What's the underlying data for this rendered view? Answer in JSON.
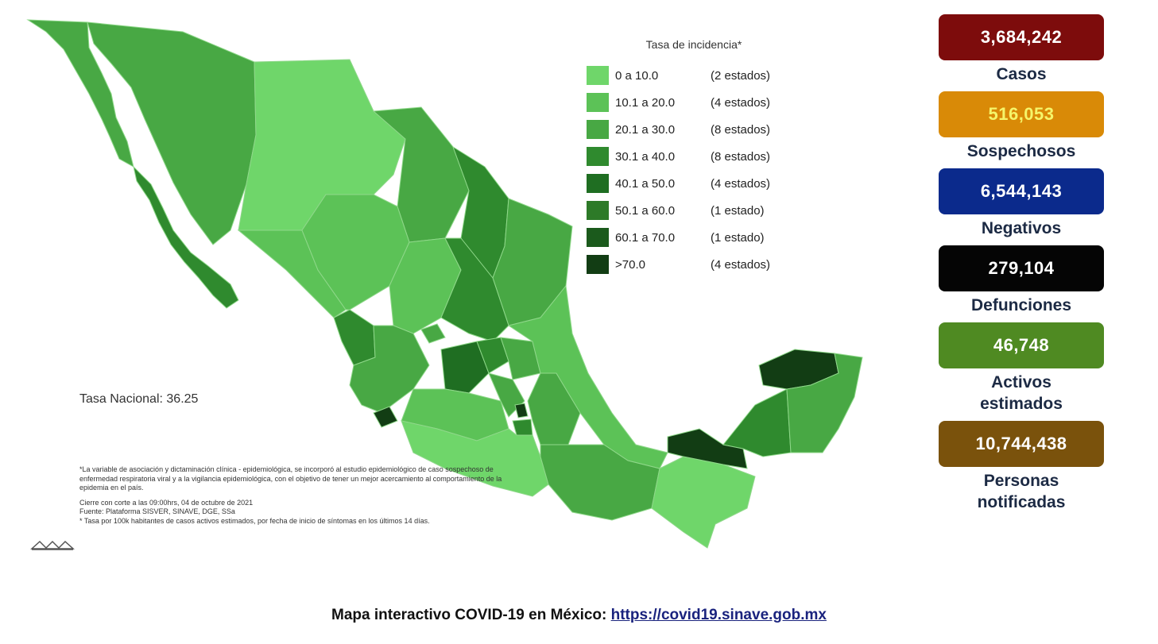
{
  "legend": {
    "title": "Tasa de incidencia*",
    "items": [
      {
        "range": "0  a  10.0",
        "count": "(2 estados)",
        "color": "#6fd66a"
      },
      {
        "range": "10.1 a  20.0",
        "count": "(4 estados)",
        "color": "#5cc257"
      },
      {
        "range": "20.1 a  30.0",
        "count": "(8 estados)",
        "color": "#48a844"
      },
      {
        "range": "30.1 a  40.0",
        "count": "(8 estados)",
        "color": "#2f8a2e"
      },
      {
        "range": "40.1 a  50.0",
        "count": "(4 estados)",
        "color": "#1f6e22"
      },
      {
        "range": "50.1 a  60.0",
        "count": "(1 estado)",
        "color": "#2d7a28"
      },
      {
        "range": "60.1 a  70.0",
        "count": "(1 estado)",
        "color": "#1b5a1c"
      },
      {
        "range": ">70.0",
        "count": "(4 estados)",
        "color": "#123d14"
      }
    ]
  },
  "tasa_nacional": "Tasa Nacional: 36.25",
  "notes": {
    "line1": "*La variable de asociación y dictaminación clínica - epidemiológica, se incorporó al estudio epidemiológico de caso sospechoso de enfermedad respiratoria viral y a la vigilancia epidemiológica, con el objetivo de tener un mejor acercamiento al comportamiento de la epidemia en el país.",
    "line2": "Cierre con corte a las 09:00hrs, 04 de octubre de 2021",
    "line3": "Fuente: Plataforma SISVER, SINAVE, DGE, SSa",
    "line4": "* Tasa por 100k habitantes de casos activos estimados, por fecha de inicio de síntomas en los últimos 14 días."
  },
  "stats": [
    {
      "value": "3,684,242",
      "label": "Casos",
      "bg": "#7d0c0c",
      "fg": "#ffffff"
    },
    {
      "value": "516,053",
      "label": "Sospechosos",
      "bg": "#d98a07",
      "fg": "#f5f56a"
    },
    {
      "value": "6,544,143",
      "label": "Negativos",
      "bg": "#0b2a8c",
      "fg": "#ffffff"
    },
    {
      "value": "279,104",
      "label": "Defunciones",
      "bg": "#050505",
      "fg": "#ffffff"
    },
    {
      "value": "46,748",
      "label": "Activos\nestimados",
      "bg": "#4f8a22",
      "fg": "#ffffff"
    },
    {
      "value": "10,744,438",
      "label": "Personas\nnotificadas",
      "bg": "#7a520c",
      "fg": "#ffffff"
    }
  ],
  "footer": {
    "text": "Mapa interactivo COVID-19 en México: ",
    "link": "https://covid19.sinave.gob.mx"
  }
}
